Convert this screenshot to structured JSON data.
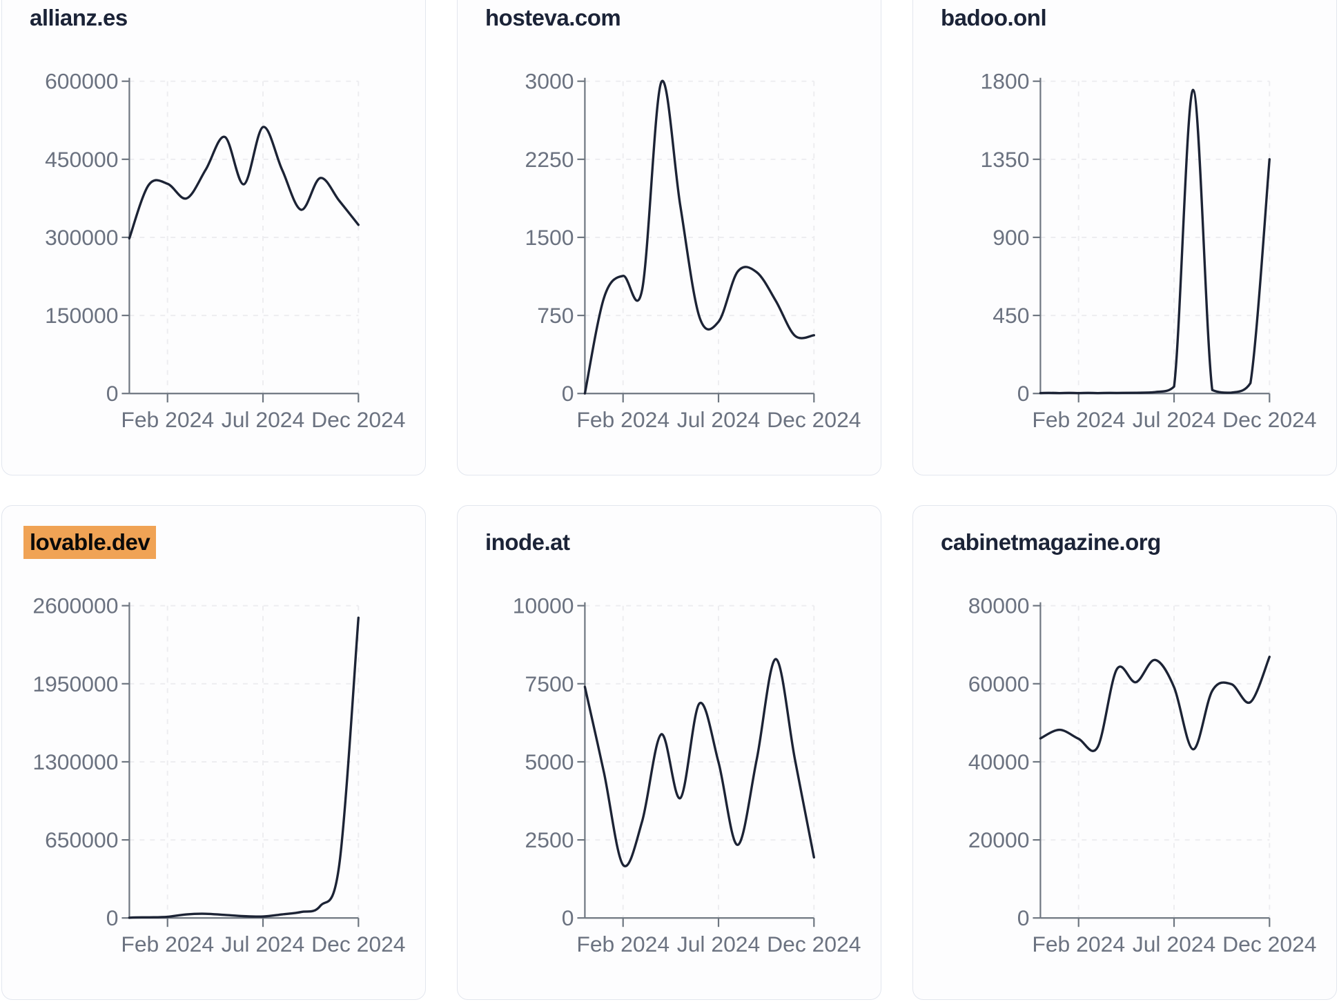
{
  "styles": {
    "page_background": "#ffffff",
    "card_background": "#fdfdfe",
    "card_border": "#e2e6ee",
    "line_color": "#1c2335",
    "title_color": "#1b2337",
    "axis_color": "#6e7680",
    "grid_color": "#ededf0",
    "tick_label_color": "#6b7280",
    "highlight_color": "#f0a355"
  },
  "chart_data": [
    {
      "type": "line",
      "title": "allianz.es",
      "highlighted": false,
      "ylim": [
        0,
        600000
      ],
      "y_ticks": [
        0,
        150000,
        300000,
        450000,
        600000
      ],
      "x_ticks": [
        {
          "label": "Feb 2024",
          "point_index": 2
        },
        {
          "label": "Jul 2024",
          "point_index": 7
        },
        {
          "label": "Dec 2024",
          "point_index": 12
        }
      ],
      "values": [
        298000,
        400000,
        403000,
        375000,
        430000,
        493000,
        402000,
        512000,
        430000,
        353000,
        414000,
        370000,
        324000
      ],
      "grid": true,
      "legend": "none"
    },
    {
      "type": "line",
      "title": "hosteva.com",
      "highlighted": false,
      "ylim": [
        0,
        3000
      ],
      "y_ticks": [
        0,
        750,
        1500,
        2250,
        3000
      ],
      "x_ticks": [
        {
          "label": "Feb 2024",
          "point_index": 2
        },
        {
          "label": "Jul 2024",
          "point_index": 7
        },
        {
          "label": "Dec 2024",
          "point_index": 12
        }
      ],
      "values": [
        0,
        920,
        1130,
        1000,
        2990,
        1800,
        735,
        690,
        1170,
        1165,
        890,
        555,
        560
      ],
      "grid": true,
      "legend": "none"
    },
    {
      "type": "line",
      "title": "badoo.onl",
      "highlighted": false,
      "ylim": [
        0,
        1800
      ],
      "y_ticks": [
        0,
        450,
        900,
        1350,
        1800
      ],
      "x_ticks": [
        {
          "label": "Feb 2024",
          "point_index": 2
        },
        {
          "label": "Jul 2024",
          "point_index": 7
        },
        {
          "label": "Dec 2024",
          "point_index": 12
        }
      ],
      "values": [
        2,
        2,
        2,
        2,
        3,
        4,
        8,
        40,
        1750,
        20,
        5,
        60,
        1350
      ],
      "grid": true,
      "legend": "none"
    },
    {
      "type": "line",
      "title": "lovable.dev",
      "highlighted": true,
      "ylim": [
        0,
        2600000
      ],
      "y_ticks": [
        0,
        650000,
        1300000,
        1950000,
        2600000
      ],
      "x_ticks": [
        {
          "label": "Feb 2024",
          "point_index": 2
        },
        {
          "label": "Jul 2024",
          "point_index": 7
        },
        {
          "label": "Dec 2024",
          "point_index": 12
        }
      ],
      "values": [
        2000,
        5000,
        10000,
        30000,
        35000,
        25000,
        15000,
        12000,
        30000,
        50000,
        100000,
        450000,
        2500000
      ],
      "grid": true,
      "legend": "none"
    },
    {
      "type": "line",
      "title": "inode.at",
      "highlighted": false,
      "ylim": [
        0,
        10000
      ],
      "y_ticks": [
        0,
        2500,
        5000,
        7500,
        10000
      ],
      "x_ticks": [
        {
          "label": "Feb 2024",
          "point_index": 2
        },
        {
          "label": "Jul 2024",
          "point_index": 7
        },
        {
          "label": "Dec 2024",
          "point_index": 12
        }
      ],
      "values": [
        7400,
        4650,
        1700,
        3100,
        5880,
        3840,
        6870,
        4980,
        2340,
        5080,
        8290,
        5080,
        1940
      ],
      "grid": true,
      "legend": "none"
    },
    {
      "type": "line",
      "title": "cabinetmagazine.org",
      "highlighted": false,
      "ylim": [
        0,
        80000
      ],
      "y_ticks": [
        0,
        20000,
        40000,
        60000,
        80000
      ],
      "x_ticks": [
        {
          "label": "Feb 2024",
          "point_index": 2
        },
        {
          "label": "Jul 2024",
          "point_index": 7
        },
        {
          "label": "Dec 2024",
          "point_index": 12
        }
      ],
      "values": [
        46000,
        48200,
        45900,
        43800,
        63700,
        60400,
        66100,
        59100,
        43200,
        58200,
        59900,
        55300,
        66900
      ],
      "grid": true,
      "legend": "none"
    }
  ]
}
